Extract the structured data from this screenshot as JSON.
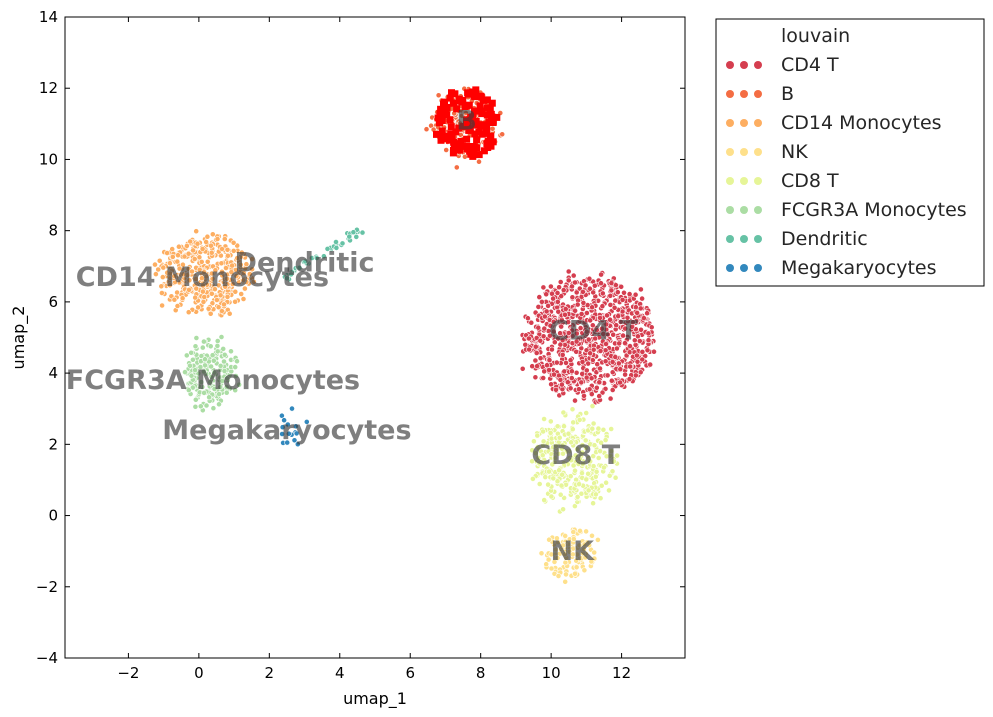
{
  "chart_data": {
    "type": "scatter",
    "xlabel": "umap_1",
    "ylabel": "umap_2",
    "xlim": [
      -3.8,
      13.8
    ],
    "ylim": [
      -4,
      14
    ],
    "xticks": [
      -2,
      0,
      2,
      4,
      6,
      8,
      10,
      12
    ],
    "yticks": [
      -4,
      -2,
      0,
      2,
      4,
      6,
      8,
      10,
      12,
      14
    ],
    "grid": false,
    "legend": {
      "title": "louvain",
      "placement": "outside-top-right",
      "entries": [
        {
          "name": "CD4 T",
          "color": "#d53e4f"
        },
        {
          "name": "B",
          "color": "#f46d43"
        },
        {
          "name": "CD14 Monocytes",
          "color": "#fdae61"
        },
        {
          "name": "NK",
          "color": "#fee08b"
        },
        {
          "name": "CD8 T",
          "color": "#e6f598"
        },
        {
          "name": "FCGR3A Monocytes",
          "color": "#abdda4"
        },
        {
          "name": "Dendritic",
          "color": "#66c2a5"
        },
        {
          "name": "Megakaryocytes",
          "color": "#3288bd"
        }
      ]
    },
    "cluster_labels": [
      {
        "text": "CD14 Monocytes",
        "x": 0.1,
        "y": 6.7
      },
      {
        "text": "Dendritic",
        "x": 3.0,
        "y": 7.1
      },
      {
        "text": "FCGR3A Monocytes",
        "x": 0.4,
        "y": 3.8
      },
      {
        "text": "Megakaryocytes",
        "x": 2.5,
        "y": 2.4
      },
      {
        "text": "B",
        "x": 7.6,
        "y": 11.1
      },
      {
        "text": "CD4 T",
        "x": 11.2,
        "y": 5.2
      },
      {
        "text": "CD8 T",
        "x": 10.7,
        "y": 1.7
      },
      {
        "text": "NK",
        "x": 10.6,
        "y": -1.0
      }
    ],
    "clusters": [
      {
        "name": "CD4 T",
        "color": "#d53e4f",
        "shape": "ellipse",
        "center": [
          11.1,
          5.0
        ],
        "spread": [
          1.8,
          1.7
        ],
        "n": 900
      },
      {
        "name": "B",
        "color": "#f46d43",
        "shape": "ellipse",
        "center": [
          7.6,
          11.0
        ],
        "spread": [
          0.9,
          1.0
        ],
        "n": 140
      },
      {
        "name": "CD14 Monocytes",
        "color": "#fdae61",
        "shape": "ellipse",
        "center": [
          0.2,
          6.8
        ],
        "spread": [
          1.3,
          1.1
        ],
        "n": 420
      },
      {
        "name": "NK",
        "color": "#fee08b",
        "shape": "ellipse",
        "center": [
          10.5,
          -1.1
        ],
        "spread": [
          0.7,
          0.7
        ],
        "n": 110
      },
      {
        "name": "CD8 T",
        "color": "#e6f598",
        "shape": "ellipse",
        "center": [
          10.6,
          1.6
        ],
        "spread": [
          1.2,
          1.3
        ],
        "n": 320
      },
      {
        "name": "FCGR3A Monocytes",
        "color": "#abdda4",
        "shape": "ellipse",
        "center": [
          0.3,
          4.0
        ],
        "spread": [
          0.7,
          0.9
        ],
        "n": 180
      },
      {
        "name": "Dendritic",
        "color": "#66c2a5",
        "shape": "line",
        "from": [
          2.4,
          6.7
        ],
        "to": [
          4.6,
          8.0
        ],
        "n": 40
      },
      {
        "name": "Megakaryocytes",
        "color": "#3288bd",
        "shape": "ellipse",
        "center": [
          2.6,
          2.4
        ],
        "spread": [
          0.3,
          0.4
        ],
        "n": 16
      }
    ],
    "highlight": {
      "name": "",
      "color": "#ff0000",
      "marker": "square",
      "center": [
        7.6,
        11.0
      ],
      "spread": [
        0.9,
        1.0
      ],
      "n": 120
    }
  }
}
